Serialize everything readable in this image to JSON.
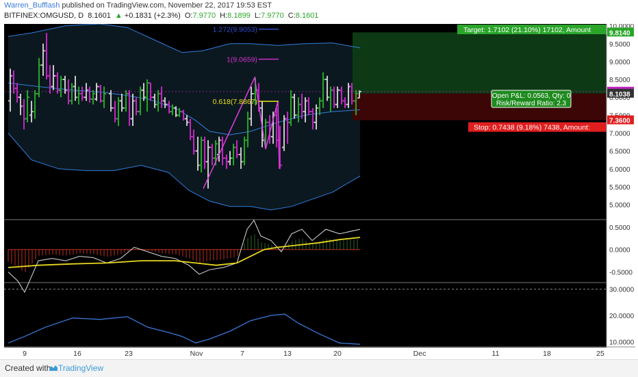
{
  "header": {
    "author": "Warren_Bufflash",
    "published_text": "published on TradingView.com, November 22, 2017 19:53 EST",
    "symbol": "BITFINEX:OMGUSD, D",
    "last": "8.1601",
    "arrow": "▲",
    "change": "+0.1831 (+2.3%)",
    "open_label": "O:",
    "open": "7.9770",
    "high_label": "H:",
    "high": "8.1899",
    "low_label": "L:",
    "low": "7.9770",
    "close_label": "C:",
    "close": "8.1601"
  },
  "footer": {
    "created_with": "Created with",
    "brand": "TradingView"
  },
  "colors": {
    "background": "#000000",
    "up_bar": "#26a626",
    "down_bar": "#c026c0",
    "neutral_bar": "#c8c8c8",
    "band": "#2f7fe0",
    "zigzag": "#e040e0",
    "target_zone": "#0d3a14",
    "stop_zone": "#3d0606",
    "macd": "#dddddd",
    "signal": "#e8d820",
    "histogram": "#c03020",
    "rsi_line": "#3a78d8"
  },
  "chart_data": {
    "type": "candlestick",
    "x_ticks": [
      "9",
      "16",
      "23",
      "Nov",
      "7",
      "13",
      "20",
      "Dec",
      "11",
      "18",
      "25"
    ],
    "price_axis": {
      "ticks": [
        "10.0000",
        "9.5000",
        "9.0000",
        "8.5000",
        "8.0000",
        "7.5000",
        "7.0000",
        "6.5000",
        "6.0000",
        "5.5000",
        "5.0000"
      ],
      "ylim": [
        4.6,
        10.05
      ],
      "markers": [
        {
          "label": "9.8140",
          "value": 9.814,
          "color": "#2aa52a"
        },
        {
          "label": "8.1601",
          "value": 8.1601,
          "color": "#c026c0"
        },
        {
          "label": "8.1038",
          "value": 8.1038,
          "color": "#333333"
        },
        {
          "label": "7.3600",
          "value": 7.36,
          "color": "#e02020"
        }
      ]
    },
    "bars": [
      {
        "x": 9,
        "o": 7.9,
        "h": 8.8,
        "l": 7.6,
        "c": 8.6
      },
      {
        "x": 14,
        "o": 8.6,
        "h": 8.75,
        "l": 8.1,
        "c": 8.25
      },
      {
        "x": 19,
        "o": 8.25,
        "h": 8.4,
        "l": 7.85,
        "c": 8.0
      },
      {
        "x": 24,
        "o": 8.0,
        "h": 8.1,
        "l": 7.5,
        "c": 7.75
      },
      {
        "x": 29,
        "o": 7.75,
        "h": 7.95,
        "l": 7.1,
        "c": 7.4
      },
      {
        "x": 34,
        "o": 7.4,
        "h": 8.2,
        "l": 7.3,
        "c": 8.0
      },
      {
        "x": 40,
        "o": 7.5,
        "h": 7.9,
        "l": 7.3,
        "c": 7.6
      },
      {
        "x": 45,
        "o": 7.6,
        "h": 8.2,
        "l": 7.4,
        "c": 8.1
      },
      {
        "x": 51,
        "o": 8.1,
        "h": 9.1,
        "l": 8.0,
        "c": 8.9
      },
      {
        "x": 57,
        "o": 8.9,
        "h": 9.5,
        "l": 8.6,
        "c": 9.3
      },
      {
        "x": 62,
        "o": 9.3,
        "h": 9.8,
        "l": 8.5,
        "c": 8.6
      },
      {
        "x": 67,
        "o": 8.6,
        "h": 8.9,
        "l": 8.1,
        "c": 8.3
      },
      {
        "x": 72,
        "o": 8.3,
        "h": 8.9,
        "l": 8.2,
        "c": 8.6
      },
      {
        "x": 78,
        "o": 8.6,
        "h": 8.7,
        "l": 8.1,
        "c": 8.2
      },
      {
        "x": 83,
        "o": 8.2,
        "h": 8.6,
        "l": 8.0,
        "c": 8.5
      },
      {
        "x": 89,
        "o": 8.5,
        "h": 8.6,
        "l": 8.1,
        "c": 8.2
      },
      {
        "x": 94,
        "o": 8.2,
        "h": 8.5,
        "l": 7.8,
        "c": 7.9
      },
      {
        "x": 99,
        "o": 7.9,
        "h": 8.4,
        "l": 7.8,
        "c": 8.3
      },
      {
        "x": 104,
        "o": 8.3,
        "h": 8.6,
        "l": 7.9,
        "c": 8.0
      },
      {
        "x": 109,
        "o": 8.0,
        "h": 8.3,
        "l": 7.8,
        "c": 8.1
      },
      {
        "x": 114,
        "o": 8.1,
        "h": 8.3,
        "l": 7.9,
        "c": 8.0
      },
      {
        "x": 120,
        "o": 8.0,
        "h": 8.4,
        "l": 7.9,
        "c": 8.2
      },
      {
        "x": 125,
        "o": 8.2,
        "h": 8.3,
        "l": 7.85,
        "c": 7.95
      },
      {
        "x": 130,
        "o": 7.95,
        "h": 8.2,
        "l": 7.8,
        "c": 8.1
      },
      {
        "x": 135,
        "o": 7.95,
        "h": 8.4,
        "l": 7.9,
        "c": 8.3
      },
      {
        "x": 141,
        "o": 8.3,
        "h": 8.35,
        "l": 7.85,
        "c": 7.9
      },
      {
        "x": 146,
        "o": 7.9,
        "h": 8.3,
        "l": 7.7,
        "c": 8.1
      },
      {
        "x": 156,
        "o": 8.1,
        "h": 8.2,
        "l": 7.6,
        "c": 7.7
      },
      {
        "x": 162,
        "o": 7.7,
        "h": 7.9,
        "l": 7.3,
        "c": 7.4
      },
      {
        "x": 167,
        "o": 7.4,
        "h": 8.0,
        "l": 7.2,
        "c": 7.9
      },
      {
        "x": 172,
        "o": 7.9,
        "h": 8.1,
        "l": 7.6,
        "c": 7.7
      },
      {
        "x": 178,
        "o": 7.7,
        "h": 8.2,
        "l": 7.6,
        "c": 8.1
      },
      {
        "x": 183,
        "o": 8.1,
        "h": 8.2,
        "l": 7.2,
        "c": 7.4
      },
      {
        "x": 188,
        "o": 7.4,
        "h": 8.1,
        "l": 7.2,
        "c": 7.9
      },
      {
        "x": 193,
        "o": 7.9,
        "h": 8.0,
        "l": 7.5,
        "c": 7.6
      },
      {
        "x": 199,
        "o": 7.6,
        "h": 8.3,
        "l": 7.5,
        "c": 8.2
      },
      {
        "x": 204,
        "o": 8.2,
        "h": 8.4,
        "l": 7.9,
        "c": 8.0
      },
      {
        "x": 209,
        "o": 8.0,
        "h": 8.5,
        "l": 7.6,
        "c": 8.4
      },
      {
        "x": 214,
        "o": 8.4,
        "h": 8.4,
        "l": 7.9,
        "c": 8.0
      },
      {
        "x": 220,
        "o": 8.0,
        "h": 8.1,
        "l": 7.7,
        "c": 7.8
      },
      {
        "x": 225,
        "o": 7.8,
        "h": 8.2,
        "l": 7.6,
        "c": 8.1
      },
      {
        "x": 230,
        "o": 8.1,
        "h": 8.3,
        "l": 7.7,
        "c": 7.9
      },
      {
        "x": 235,
        "o": 7.9,
        "h": 8.0,
        "l": 7.7,
        "c": 7.8
      },
      {
        "x": 241,
        "o": 7.8,
        "h": 7.9,
        "l": 7.55,
        "c": 7.6
      },
      {
        "x": 246,
        "o": 7.6,
        "h": 7.8,
        "l": 7.5,
        "c": 7.7
      },
      {
        "x": 251,
        "o": 7.7,
        "h": 7.75,
        "l": 7.45,
        "c": 7.5
      },
      {
        "x": 256,
        "o": 7.5,
        "h": 7.7,
        "l": 7.45,
        "c": 7.6
      },
      {
        "x": 262,
        "o": 7.6,
        "h": 7.65,
        "l": 7.35,
        "c": 7.4
      },
      {
        "x": 267,
        "o": 7.4,
        "h": 7.5,
        "l": 7.2,
        "c": 7.3
      },
      {
        "x": 272,
        "o": 7.3,
        "h": 7.4,
        "l": 6.8,
        "c": 6.9
      },
      {
        "x": 277,
        "o": 6.9,
        "h": 7.1,
        "l": 6.4,
        "c": 6.5
      },
      {
        "x": 283,
        "o": 6.5,
        "h": 6.9,
        "l": 5.95,
        "c": 6.1
      },
      {
        "x": 288,
        "o": 6.1,
        "h": 6.9,
        "l": 5.9,
        "c": 6.8
      },
      {
        "x": 293,
        "o": 6.8,
        "h": 6.9,
        "l": 6.0,
        "c": 6.2
      },
      {
        "x": 298,
        "o": 6.2,
        "h": 6.8,
        "l": 5.45,
        "c": 6.6
      },
      {
        "x": 304,
        "o": 6.6,
        "h": 6.7,
        "l": 6.1,
        "c": 6.3
      },
      {
        "x": 309,
        "o": 6.3,
        "h": 6.8,
        "l": 6.1,
        "c": 6.7
      },
      {
        "x": 314,
        "o": 6.4,
        "h": 6.9,
        "l": 6.2,
        "c": 6.8
      },
      {
        "x": 319,
        "o": 6.8,
        "h": 6.9,
        "l": 6.1,
        "c": 6.3
      },
      {
        "x": 325,
        "o": 6.3,
        "h": 6.4,
        "l": 6.0,
        "c": 6.2
      },
      {
        "x": 330,
        "o": 6.2,
        "h": 6.5,
        "l": 6.1,
        "c": 6.3
      },
      {
        "x": 335,
        "o": 6.3,
        "h": 6.7,
        "l": 6.1,
        "c": 6.6
      },
      {
        "x": 340,
        "o": 6.6,
        "h": 6.8,
        "l": 6.3,
        "c": 6.4
      },
      {
        "x": 346,
        "o": 6.4,
        "h": 6.6,
        "l": 6.0,
        "c": 6.2
      },
      {
        "x": 351,
        "o": 6.2,
        "h": 6.9,
        "l": 6.1,
        "c": 6.8
      },
      {
        "x": 356,
        "o": 6.8,
        "h": 7.6,
        "l": 6.6,
        "c": 7.4
      },
      {
        "x": 361,
        "o": 7.4,
        "h": 8.3,
        "l": 7.2,
        "c": 8.1
      },
      {
        "x": 367,
        "o": 8.1,
        "h": 8.55,
        "l": 7.8,
        "c": 8.2
      },
      {
        "x": 372,
        "o": 8.2,
        "h": 8.4,
        "l": 7.6,
        "c": 7.7
      },
      {
        "x": 377,
        "o": 7.7,
        "h": 7.9,
        "l": 6.6,
        "c": 6.8
      },
      {
        "x": 382,
        "o": 6.8,
        "h": 7.4,
        "l": 6.6,
        "c": 7.3
      },
      {
        "x": 388,
        "o": 7.3,
        "h": 7.5,
        "l": 6.7,
        "c": 6.9
      },
      {
        "x": 393,
        "o": 6.9,
        "h": 7.6,
        "l": 6.7,
        "c": 7.5
      },
      {
        "x": 398,
        "o": 7.5,
        "h": 7.7,
        "l": 6.6,
        "c": 6.8
      },
      {
        "x": 403,
        "o": 6.8,
        "h": 7.2,
        "l": 6.0,
        "c": 6.1
      },
      {
        "x": 409,
        "o": 6.6,
        "h": 7.5,
        "l": 6.5,
        "c": 7.4
      },
      {
        "x": 414,
        "o": 7.4,
        "h": 7.6,
        "l": 6.7,
        "c": 7.3
      },
      {
        "x": 419,
        "o": 7.3,
        "h": 8.2,
        "l": 7.2,
        "c": 8.0
      },
      {
        "x": 424,
        "o": 8.0,
        "h": 8.1,
        "l": 7.4,
        "c": 7.5
      },
      {
        "x": 430,
        "o": 7.5,
        "h": 8.0,
        "l": 7.3,
        "c": 7.8
      },
      {
        "x": 435,
        "o": 7.8,
        "h": 8.1,
        "l": 7.4,
        "c": 7.6
      },
      {
        "x": 440,
        "o": 7.6,
        "h": 8.0,
        "l": 7.3,
        "c": 7.9
      },
      {
        "x": 445,
        "o": 7.9,
        "h": 8.0,
        "l": 7.5,
        "c": 7.6
      },
      {
        "x": 451,
        "o": 7.6,
        "h": 7.7,
        "l": 7.1,
        "c": 7.3
      },
      {
        "x": 456,
        "o": 7.3,
        "h": 7.8,
        "l": 7.1,
        "c": 7.7
      },
      {
        "x": 461,
        "o": 7.7,
        "h": 8.0,
        "l": 7.5,
        "c": 7.9
      },
      {
        "x": 466,
        "o": 7.9,
        "h": 8.7,
        "l": 7.7,
        "c": 8.5
      },
      {
        "x": 472,
        "o": 8.5,
        "h": 8.6,
        "l": 7.9,
        "c": 8.0
      },
      {
        "x": 477,
        "o": 8.0,
        "h": 8.3,
        "l": 7.6,
        "c": 8.2
      },
      {
        "x": 482,
        "o": 8.2,
        "h": 8.3,
        "l": 7.7,
        "c": 7.8
      },
      {
        "x": 487,
        "o": 7.8,
        "h": 8.3,
        "l": 7.7,
        "c": 8.2
      },
      {
        "x": 493,
        "o": 8.2,
        "h": 8.3,
        "l": 7.8,
        "c": 7.9
      },
      {
        "x": 498,
        "o": 7.9,
        "h": 8.0,
        "l": 7.7,
        "c": 7.8
      },
      {
        "x": 503,
        "o": 7.8,
        "h": 8.4,
        "l": 7.7,
        "c": 8.3
      },
      {
        "x": 508,
        "o": 8.3,
        "h": 8.4,
        "l": 7.8,
        "c": 7.9
      },
      {
        "x": 514,
        "o": 7.9,
        "h": 8.2,
        "l": 7.5,
        "c": 8.1
      },
      {
        "x": 519,
        "o": 7.98,
        "h": 8.19,
        "l": 7.98,
        "c": 8.16
      }
    ],
    "bollinger": {
      "upper": [
        [
          6,
          9.7
        ],
        [
          40,
          9.8
        ],
        [
          90,
          10.0
        ],
        [
          140,
          10.05
        ],
        [
          180,
          9.95
        ],
        [
          220,
          9.6
        ],
        [
          260,
          9.25
        ],
        [
          290,
          9.3
        ],
        [
          330,
          9.5
        ],
        [
          360,
          9.5
        ],
        [
          400,
          9.45
        ],
        [
          440,
          9.5
        ],
        [
          480,
          9.52
        ],
        [
          520,
          9.38
        ]
      ],
      "middle": [
        [
          6,
          8.4
        ],
        [
          50,
          8.3
        ],
        [
          100,
          8.2
        ],
        [
          140,
          8.15
        ],
        [
          180,
          8.05
        ],
        [
          210,
          7.95
        ],
        [
          250,
          7.7
        ],
        [
          280,
          7.35
        ],
        [
          300,
          7.05
        ],
        [
          330,
          6.95
        ],
        [
          360,
          7.05
        ],
        [
          400,
          7.3
        ],
        [
          440,
          7.5
        ],
        [
          480,
          7.6
        ],
        [
          520,
          7.65
        ]
      ],
      "lower": [
        [
          6,
          7.0
        ],
        [
          40,
          6.25
        ],
        [
          80,
          6.0
        ],
        [
          120,
          5.95
        ],
        [
          160,
          5.95
        ],
        [
          200,
          6.1
        ],
        [
          240,
          5.9
        ],
        [
          270,
          5.4
        ],
        [
          300,
          5.1
        ],
        [
          330,
          4.95
        ],
        [
          360,
          4.95
        ],
        [
          390,
          4.85
        ],
        [
          420,
          4.95
        ],
        [
          450,
          5.15
        ],
        [
          480,
          5.35
        ],
        [
          520,
          5.8
        ]
      ]
    },
    "zigzag": [
      [
        291,
        5.45
      ],
      [
        366,
        8.55
      ],
      [
        382,
        6.55
      ],
      [
        400,
        7.9
      ],
      [
        402,
        6.0
      ]
    ],
    "fibonacci": [
      {
        "label": "1.272(9.9053)",
        "value": 9.9053,
        "color": "#3050d0"
      },
      {
        "label": "1(9.0659)",
        "value": 9.0659,
        "color": "#d030d0"
      },
      {
        "label": "0.618(7.8867)",
        "value": 7.8867,
        "color": "#e8e020"
      }
    ],
    "position": {
      "target_label": "Target: 1.7102 (21.10%) 17102, Amount",
      "target_price": 9.814,
      "entry_price": 8.1038,
      "stop_label": "Stop: 0.7438 (9.18%) 7438, Amount:",
      "stop_price": 7.36,
      "pnl_label": "Open P&L: 0.0563, Qty: 0",
      "rr_label": "Risk/Reward Ratio: 2.3"
    },
    "macd": {
      "ticks": [
        "0.5000",
        "0.0000",
        "-0.5000"
      ],
      "ylim": [
        -0.72,
        0.65
      ],
      "macd_line": [
        [
          6,
          -0.5
        ],
        [
          20,
          -0.7
        ],
        [
          30,
          -0.95
        ],
        [
          40,
          -0.6
        ],
        [
          50,
          -0.25
        ],
        [
          70,
          -0.2
        ],
        [
          90,
          -0.25
        ],
        [
          110,
          -0.15
        ],
        [
          130,
          -0.18
        ],
        [
          150,
          -0.3
        ],
        [
          170,
          -0.2
        ],
        [
          190,
          0.05
        ],
        [
          210,
          -0.05
        ],
        [
          230,
          -0.15
        ],
        [
          250,
          -0.2
        ],
        [
          270,
          -0.35
        ],
        [
          285,
          -0.55
        ],
        [
          300,
          -0.45
        ],
        [
          320,
          -0.4
        ],
        [
          340,
          -0.3
        ],
        [
          355,
          0.45
        ],
        [
          365,
          0.65
        ],
        [
          375,
          0.3
        ],
        [
          390,
          0.2
        ],
        [
          405,
          -0.05
        ],
        [
          420,
          0.35
        ],
        [
          435,
          0.45
        ],
        [
          450,
          0.2
        ],
        [
          470,
          0.45
        ],
        [
          490,
          0.35
        ],
        [
          520,
          0.45
        ]
      ],
      "signal_line": [
        [
          6,
          -0.4
        ],
        [
          50,
          -0.35
        ],
        [
          100,
          -0.32
        ],
        [
          150,
          -0.3
        ],
        [
          200,
          -0.25
        ],
        [
          250,
          -0.25
        ],
        [
          280,
          -0.3
        ],
        [
          310,
          -0.35
        ],
        [
          340,
          -0.3
        ],
        [
          360,
          -0.15
        ],
        [
          380,
          0.0
        ],
        [
          400,
          0.05
        ],
        [
          430,
          0.1
        ],
        [
          460,
          0.15
        ],
        [
          490,
          0.22
        ],
        [
          520,
          0.27
        ]
      ]
    },
    "rsi": {
      "ticks": [
        "30.0000",
        "20.0000",
        "10.0000"
      ],
      "ylim": [
        8,
        32
      ],
      "line": [
        [
          6,
          9.5
        ],
        [
          30,
          12
        ],
        [
          60,
          15.5
        ],
        [
          100,
          19
        ],
        [
          140,
          18.5
        ],
        [
          180,
          19.5
        ],
        [
          210,
          15.5
        ],
        [
          240,
          13.5
        ],
        [
          260,
          12
        ],
        [
          280,
          9.5
        ],
        [
          300,
          11
        ],
        [
          330,
          14
        ],
        [
          360,
          18
        ],
        [
          390,
          20
        ],
        [
          410,
          20.5
        ],
        [
          430,
          17
        ],
        [
          460,
          13
        ],
        [
          490,
          9.5
        ],
        [
          520,
          9
        ]
      ]
    }
  }
}
